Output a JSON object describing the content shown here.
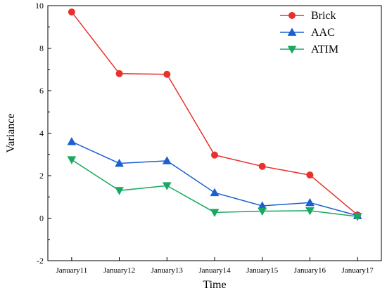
{
  "chart_data": {
    "type": "line",
    "title": "",
    "xlabel": "Time",
    "ylabel": "Variance",
    "categories": [
      "January11",
      "January12",
      "January13",
      "January14",
      "January15",
      "January16",
      "January17"
    ],
    "ylim": [
      -2,
      10
    ],
    "yticks": [
      -2,
      0,
      2,
      4,
      6,
      8,
      10
    ],
    "grid": false,
    "legend_position": "top-right",
    "series": [
      {
        "name": "Brick",
        "color": "#e8312d",
        "marker": "circle",
        "values": [
          9.7,
          6.8,
          6.77,
          2.97,
          2.44,
          2.03,
          0.15
        ]
      },
      {
        "name": "AAC",
        "color": "#1b5fd0",
        "marker": "triangle-up",
        "values": [
          3.6,
          2.58,
          2.7,
          1.2,
          0.58,
          0.73,
          0.12
        ]
      },
      {
        "name": "ATIM",
        "color": "#19a860",
        "marker": "triangle-down",
        "values": [
          2.75,
          1.3,
          1.53,
          0.27,
          0.33,
          0.35,
          0.08
        ]
      }
    ]
  }
}
